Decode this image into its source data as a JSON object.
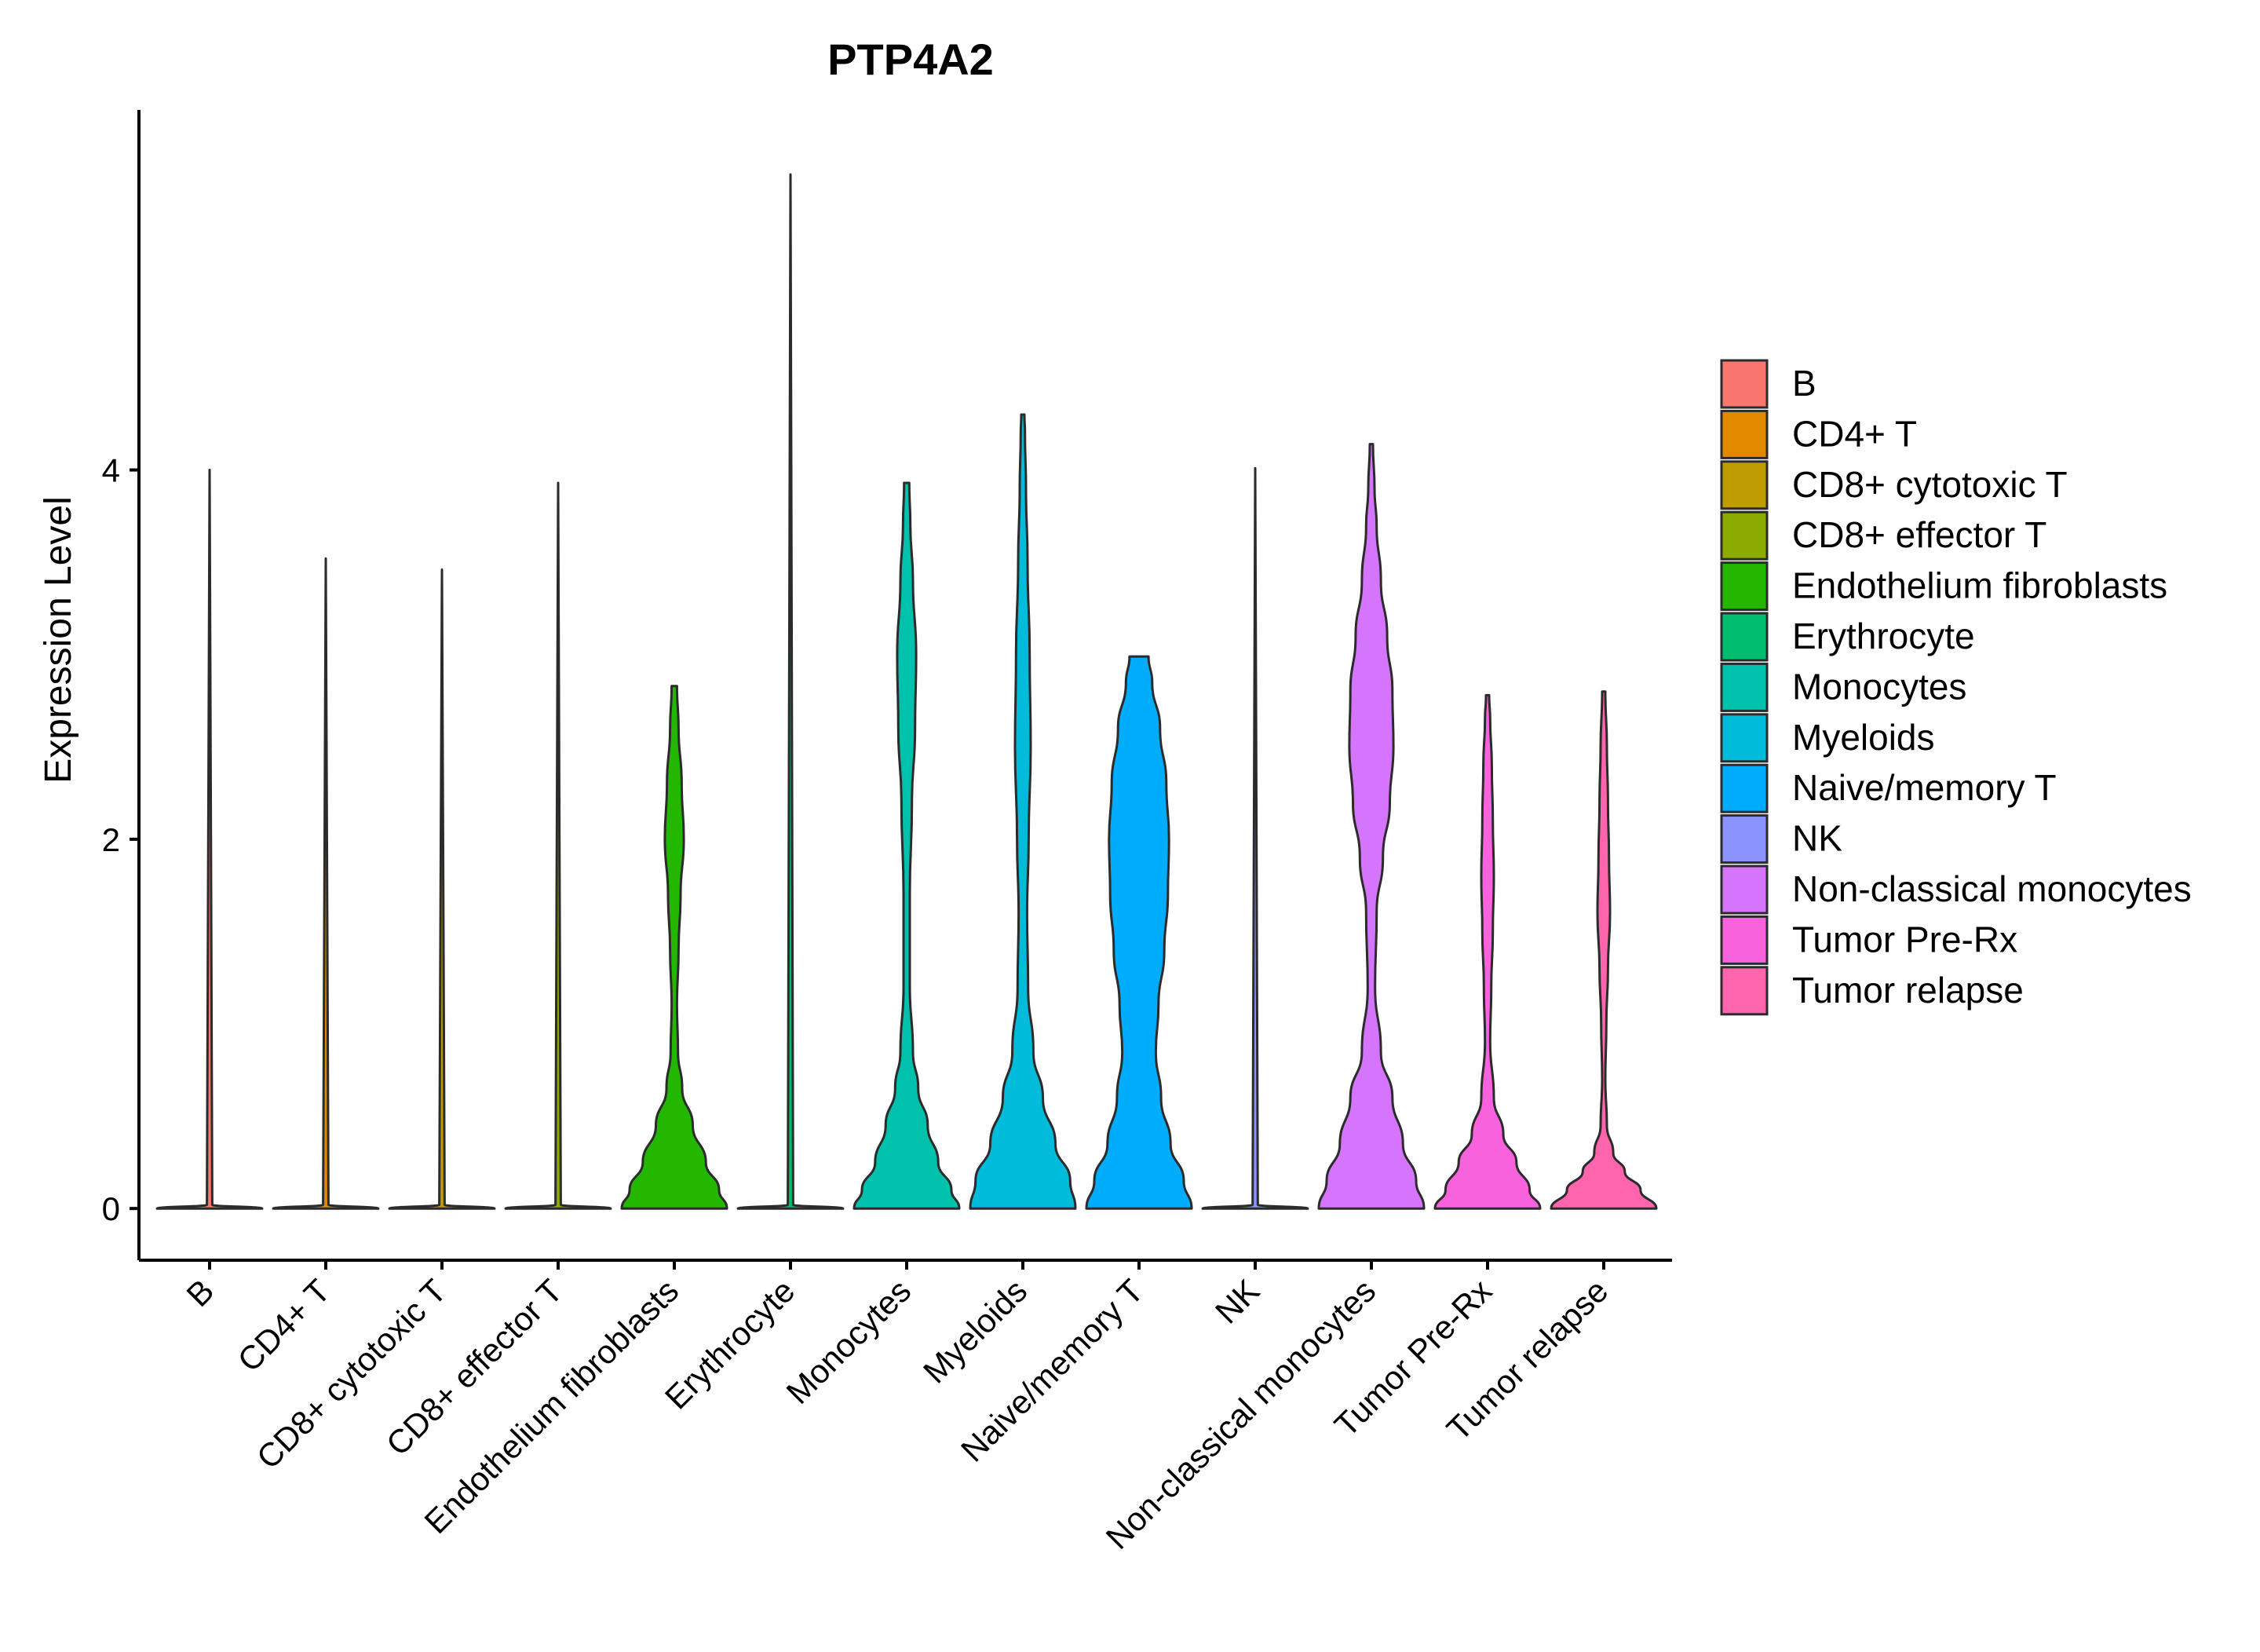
{
  "chart_data": {
    "type": "violin",
    "title": "PTP4A2",
    "xlabel": "",
    "ylabel": "Expression Level",
    "ylim": [
      -0.28,
      5.95
    ],
    "yticks": [
      0,
      2,
      4
    ],
    "legend_position": "right",
    "categories": [
      "B",
      "CD4+ T",
      "CD8+ cytotoxic T",
      "CD8+ effector T",
      "Endothelium fibroblasts",
      "Erythrocyte",
      "Monocytes",
      "Myeloids",
      "Naive/memory T",
      "NK",
      "Non-classical monocytes",
      "Tumor Pre-Rx",
      "Tumor relapse"
    ],
    "colors": [
      "#F8766D",
      "#E18A00",
      "#BE9C00",
      "#8CAB00",
      "#24B700",
      "#00BE70",
      "#00C1AB",
      "#00BBDA",
      "#00ACFC",
      "#8B93FF",
      "#D575FE",
      "#F962DD",
      "#FF65AC"
    ],
    "max_values": [
      4.0,
      3.52,
      3.46,
      3.93,
      2.83,
      5.6,
      3.93,
      4.3,
      2.99,
      4.01,
      4.14,
      2.78,
      2.8
    ],
    "violins": [
      {
        "name": "B",
        "profile": [
          [
            0,
            1
          ],
          [
            0.02,
            0.05
          ],
          [
            4.0,
            0.0
          ]
        ]
      },
      {
        "name": "CD4+ T",
        "profile": [
          [
            0,
            1
          ],
          [
            0.02,
            0.05
          ],
          [
            3.52,
            0.0
          ]
        ]
      },
      {
        "name": "CD8+ cytotoxic T",
        "profile": [
          [
            0,
            1
          ],
          [
            0.02,
            0.05
          ],
          [
            3.46,
            0.0
          ]
        ]
      },
      {
        "name": "CD8+ effector T",
        "profile": [
          [
            0,
            1
          ],
          [
            0.02,
            0.05
          ],
          [
            3.93,
            0.0
          ]
        ]
      },
      {
        "name": "Endothelium fibroblasts",
        "profile": [
          [
            0,
            1
          ],
          [
            0.1,
            0.85
          ],
          [
            0.25,
            0.6
          ],
          [
            0.45,
            0.35
          ],
          [
            0.65,
            0.15
          ],
          [
            0.85,
            0.07
          ],
          [
            1.1,
            0.05
          ],
          [
            1.4,
            0.08
          ],
          [
            1.7,
            0.12
          ],
          [
            2.0,
            0.18
          ],
          [
            2.3,
            0.14
          ],
          [
            2.6,
            0.08
          ],
          [
            2.83,
            0.05
          ]
        ]
      },
      {
        "name": "Erythrocyte",
        "profile": [
          [
            0,
            1
          ],
          [
            0.02,
            0.05
          ],
          [
            5.6,
            0.0
          ]
        ]
      },
      {
        "name": "Monocytes",
        "profile": [
          [
            0,
            1
          ],
          [
            0.1,
            0.85
          ],
          [
            0.25,
            0.6
          ],
          [
            0.45,
            0.4
          ],
          [
            0.65,
            0.22
          ],
          [
            0.85,
            0.12
          ],
          [
            1.2,
            0.06
          ],
          [
            1.7,
            0.06
          ],
          [
            2.2,
            0.1
          ],
          [
            2.6,
            0.16
          ],
          [
            3.0,
            0.18
          ],
          [
            3.4,
            0.12
          ],
          [
            3.7,
            0.07
          ],
          [
            3.93,
            0.05
          ]
        ]
      },
      {
        "name": "Myeloids",
        "profile": [
          [
            0,
            1
          ],
          [
            0.15,
            0.9
          ],
          [
            0.35,
            0.62
          ],
          [
            0.6,
            0.38
          ],
          [
            0.85,
            0.2
          ],
          [
            1.2,
            0.1
          ],
          [
            1.6,
            0.08
          ],
          [
            2.0,
            0.11
          ],
          [
            2.5,
            0.15
          ],
          [
            3.0,
            0.13
          ],
          [
            3.5,
            0.09
          ],
          [
            3.9,
            0.06
          ],
          [
            4.2,
            0.04
          ],
          [
            4.3,
            0.03
          ]
        ]
      },
      {
        "name": "Naive/memory T",
        "profile": [
          [
            0,
            1
          ],
          [
            0.15,
            0.85
          ],
          [
            0.35,
            0.6
          ],
          [
            0.6,
            0.42
          ],
          [
            0.85,
            0.32
          ],
          [
            1.1,
            0.37
          ],
          [
            1.4,
            0.48
          ],
          [
            1.7,
            0.55
          ],
          [
            2.0,
            0.57
          ],
          [
            2.3,
            0.52
          ],
          [
            2.6,
            0.4
          ],
          [
            2.85,
            0.25
          ],
          [
            2.99,
            0.18
          ]
        ]
      },
      {
        "name": "NK",
        "profile": [
          [
            0,
            1
          ],
          [
            0.02,
            0.05
          ],
          [
            4.01,
            0.0
          ]
        ]
      },
      {
        "name": "Non-classical monocytes",
        "profile": [
          [
            0,
            1
          ],
          [
            0.15,
            0.85
          ],
          [
            0.35,
            0.6
          ],
          [
            0.6,
            0.4
          ],
          [
            0.85,
            0.18
          ],
          [
            1.2,
            0.07
          ],
          [
            1.6,
            0.1
          ],
          [
            1.9,
            0.22
          ],
          [
            2.2,
            0.35
          ],
          [
            2.5,
            0.42
          ],
          [
            2.8,
            0.4
          ],
          [
            3.1,
            0.3
          ],
          [
            3.4,
            0.18
          ],
          [
            3.7,
            0.1
          ],
          [
            3.9,
            0.06
          ],
          [
            4.14,
            0.03
          ]
        ]
      },
      {
        "name": "Tumor Pre-Rx",
        "profile": [
          [
            0,
            1
          ],
          [
            0.1,
            0.8
          ],
          [
            0.25,
            0.55
          ],
          [
            0.4,
            0.3
          ],
          [
            0.6,
            0.12
          ],
          [
            0.9,
            0.05
          ],
          [
            1.2,
            0.07
          ],
          [
            1.5,
            0.1
          ],
          [
            1.8,
            0.12
          ],
          [
            2.1,
            0.1
          ],
          [
            2.4,
            0.08
          ],
          [
            2.65,
            0.05
          ],
          [
            2.78,
            0.03
          ]
        ]
      },
      {
        "name": "Tumor relapse",
        "profile": [
          [
            0,
            1
          ],
          [
            0.1,
            0.7
          ],
          [
            0.2,
            0.4
          ],
          [
            0.3,
            0.18
          ],
          [
            0.45,
            0.06
          ],
          [
            0.7,
            0.03
          ],
          [
            1.0,
            0.05
          ],
          [
            1.3,
            0.08
          ],
          [
            1.6,
            0.12
          ],
          [
            1.9,
            0.1
          ],
          [
            2.2,
            0.08
          ],
          [
            2.5,
            0.06
          ],
          [
            2.8,
            0.03
          ]
        ]
      }
    ]
  }
}
